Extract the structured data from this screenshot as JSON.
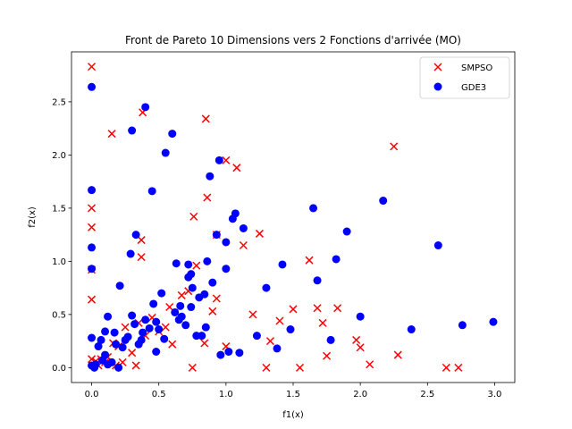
{
  "chart_data": {
    "type": "scatter",
    "title": "Front de Pareto 10 Dimensions vers 2 Fonctions d'arrivée (MO)",
    "xlabel": "f1(x)",
    "ylabel": "f2(x)",
    "xlim": [
      -0.15,
      3.15
    ],
    "ylim": [
      -0.14,
      2.97
    ],
    "xticks": [
      "0.0",
      "0.5",
      "1.0",
      "1.5",
      "2.0",
      "2.5",
      "3.0"
    ],
    "yticks": [
      "0.0",
      "0.5",
      "1.0",
      "1.5",
      "2.0",
      "2.5"
    ],
    "legend_position": "top-right",
    "grid": false,
    "series": [
      {
        "name": "SMPSO",
        "marker": "x",
        "color": "#ff0000",
        "points": [
          [
            0.0,
            2.83
          ],
          [
            0.0,
            1.5
          ],
          [
            0.0,
            1.32
          ],
          [
            0.0,
            0.92
          ],
          [
            0.0,
            0.64
          ],
          [
            0.0,
            0.08
          ],
          [
            0.02,
            0.02
          ],
          [
            0.03,
            0.06
          ],
          [
            0.05,
            0.02
          ],
          [
            0.07,
            0.08
          ],
          [
            0.1,
            0.05
          ],
          [
            0.12,
            0.1
          ],
          [
            0.15,
            2.2
          ],
          [
            0.16,
            0.23
          ],
          [
            0.18,
            0.02
          ],
          [
            0.2,
            0.2
          ],
          [
            0.23,
            0.05
          ],
          [
            0.25,
            0.38
          ],
          [
            0.3,
            0.14
          ],
          [
            0.33,
            0.02
          ],
          [
            0.35,
            0.42
          ],
          [
            0.37,
            1.2
          ],
          [
            0.37,
            1.04
          ],
          [
            0.38,
            2.4
          ],
          [
            0.4,
            0.3
          ],
          [
            0.45,
            0.47
          ],
          [
            0.5,
            0.34
          ],
          [
            0.55,
            0.38
          ],
          [
            0.58,
            0.57
          ],
          [
            0.6,
            0.22
          ],
          [
            0.67,
            0.68
          ],
          [
            0.72,
            0.72
          ],
          [
            0.75,
            0.0
          ],
          [
            0.78,
            0.96
          ],
          [
            0.76,
            1.42
          ],
          [
            0.85,
            2.34
          ],
          [
            0.86,
            1.6
          ],
          [
            0.84,
            0.23
          ],
          [
            0.9,
            0.53
          ],
          [
            0.93,
            0.65
          ],
          [
            0.93,
            1.25
          ],
          [
            1.0,
            1.95
          ],
          [
            1.08,
            1.88
          ],
          [
            1.0,
            0.2
          ],
          [
            1.13,
            1.15
          ],
          [
            1.2,
            0.5
          ],
          [
            1.25,
            1.26
          ],
          [
            1.3,
            0.0
          ],
          [
            1.33,
            0.25
          ],
          [
            1.4,
            0.44
          ],
          [
            1.5,
            0.55
          ],
          [
            1.55,
            0.0
          ],
          [
            1.62,
            1.01
          ],
          [
            1.68,
            0.56
          ],
          [
            1.72,
            0.42
          ],
          [
            1.75,
            0.11
          ],
          [
            1.83,
            0.56
          ],
          [
            1.97,
            0.26
          ],
          [
            2.0,
            0.19
          ],
          [
            2.07,
            0.03
          ],
          [
            2.25,
            2.08
          ],
          [
            2.28,
            0.12
          ],
          [
            2.64,
            0.0
          ],
          [
            2.73,
            0.0
          ]
        ]
      },
      {
        "name": "GDE3",
        "marker": "o",
        "color": "#0000ff",
        "points": [
          [
            0.0,
            2.64
          ],
          [
            0.0,
            1.67
          ],
          [
            0.0,
            1.13
          ],
          [
            0.0,
            0.93
          ],
          [
            0.0,
            0.28
          ],
          [
            0.0,
            0.02
          ],
          [
            0.02,
            0.0
          ],
          [
            0.03,
            0.03
          ],
          [
            0.05,
            0.2
          ],
          [
            0.07,
            0.26
          ],
          [
            0.08,
            0.07
          ],
          [
            0.1,
            0.12
          ],
          [
            0.1,
            0.34
          ],
          [
            0.12,
            0.48
          ],
          [
            0.12,
            0.03
          ],
          [
            0.15,
            0.05
          ],
          [
            0.17,
            0.33
          ],
          [
            0.18,
            0.22
          ],
          [
            0.2,
            0.0
          ],
          [
            0.21,
            0.77
          ],
          [
            0.23,
            0.19
          ],
          [
            0.25,
            0.26
          ],
          [
            0.27,
            0.29
          ],
          [
            0.29,
            1.07
          ],
          [
            0.3,
            2.23
          ],
          [
            0.3,
            0.49
          ],
          [
            0.32,
            0.41
          ],
          [
            0.33,
            1.25
          ],
          [
            0.35,
            0.22
          ],
          [
            0.37,
            0.26
          ],
          [
            0.38,
            0.33
          ],
          [
            0.4,
            2.45
          ],
          [
            0.4,
            0.45
          ],
          [
            0.43,
            0.37
          ],
          [
            0.45,
            1.66
          ],
          [
            0.46,
            0.6
          ],
          [
            0.48,
            0.15
          ],
          [
            0.48,
            0.43
          ],
          [
            0.5,
            0.36
          ],
          [
            0.52,
            0.7
          ],
          [
            0.54,
            0.27
          ],
          [
            0.55,
            2.02
          ],
          [
            0.6,
            2.2
          ],
          [
            0.62,
            0.52
          ],
          [
            0.63,
            0.98
          ],
          [
            0.65,
            0.45
          ],
          [
            0.66,
            0.58
          ],
          [
            0.67,
            0.48
          ],
          [
            0.7,
            0.4
          ],
          [
            0.72,
            0.97
          ],
          [
            0.72,
            0.85
          ],
          [
            0.74,
            0.88
          ],
          [
            0.75,
            0.75
          ],
          [
            0.74,
            0.57
          ],
          [
            0.78,
            0.3
          ],
          [
            0.8,
            0.66
          ],
          [
            0.82,
            0.3
          ],
          [
            0.84,
            0.69
          ],
          [
            0.85,
            0.38
          ],
          [
            0.86,
            1.0
          ],
          [
            0.88,
            1.8
          ],
          [
            0.9,
            0.8
          ],
          [
            0.93,
            1.25
          ],
          [
            0.95,
            1.95
          ],
          [
            0.96,
            0.12
          ],
          [
            1.0,
            1.18
          ],
          [
            1.0,
            0.93
          ],
          [
            1.02,
            0.15
          ],
          [
            1.05,
            1.4
          ],
          [
            1.07,
            1.45
          ],
          [
            1.1,
            0.14
          ],
          [
            1.13,
            1.31
          ],
          [
            1.23,
            0.3
          ],
          [
            1.3,
            0.75
          ],
          [
            1.38,
            0.18
          ],
          [
            1.42,
            0.97
          ],
          [
            1.48,
            0.36
          ],
          [
            1.65,
            1.5
          ],
          [
            1.68,
            0.82
          ],
          [
            1.78,
            0.26
          ],
          [
            1.82,
            1.02
          ],
          [
            1.9,
            1.28
          ],
          [
            2.0,
            0.48
          ],
          [
            2.17,
            1.57
          ],
          [
            2.38,
            0.36
          ],
          [
            2.58,
            1.15
          ],
          [
            2.76,
            0.4
          ],
          [
            2.99,
            0.43
          ]
        ]
      }
    ]
  }
}
